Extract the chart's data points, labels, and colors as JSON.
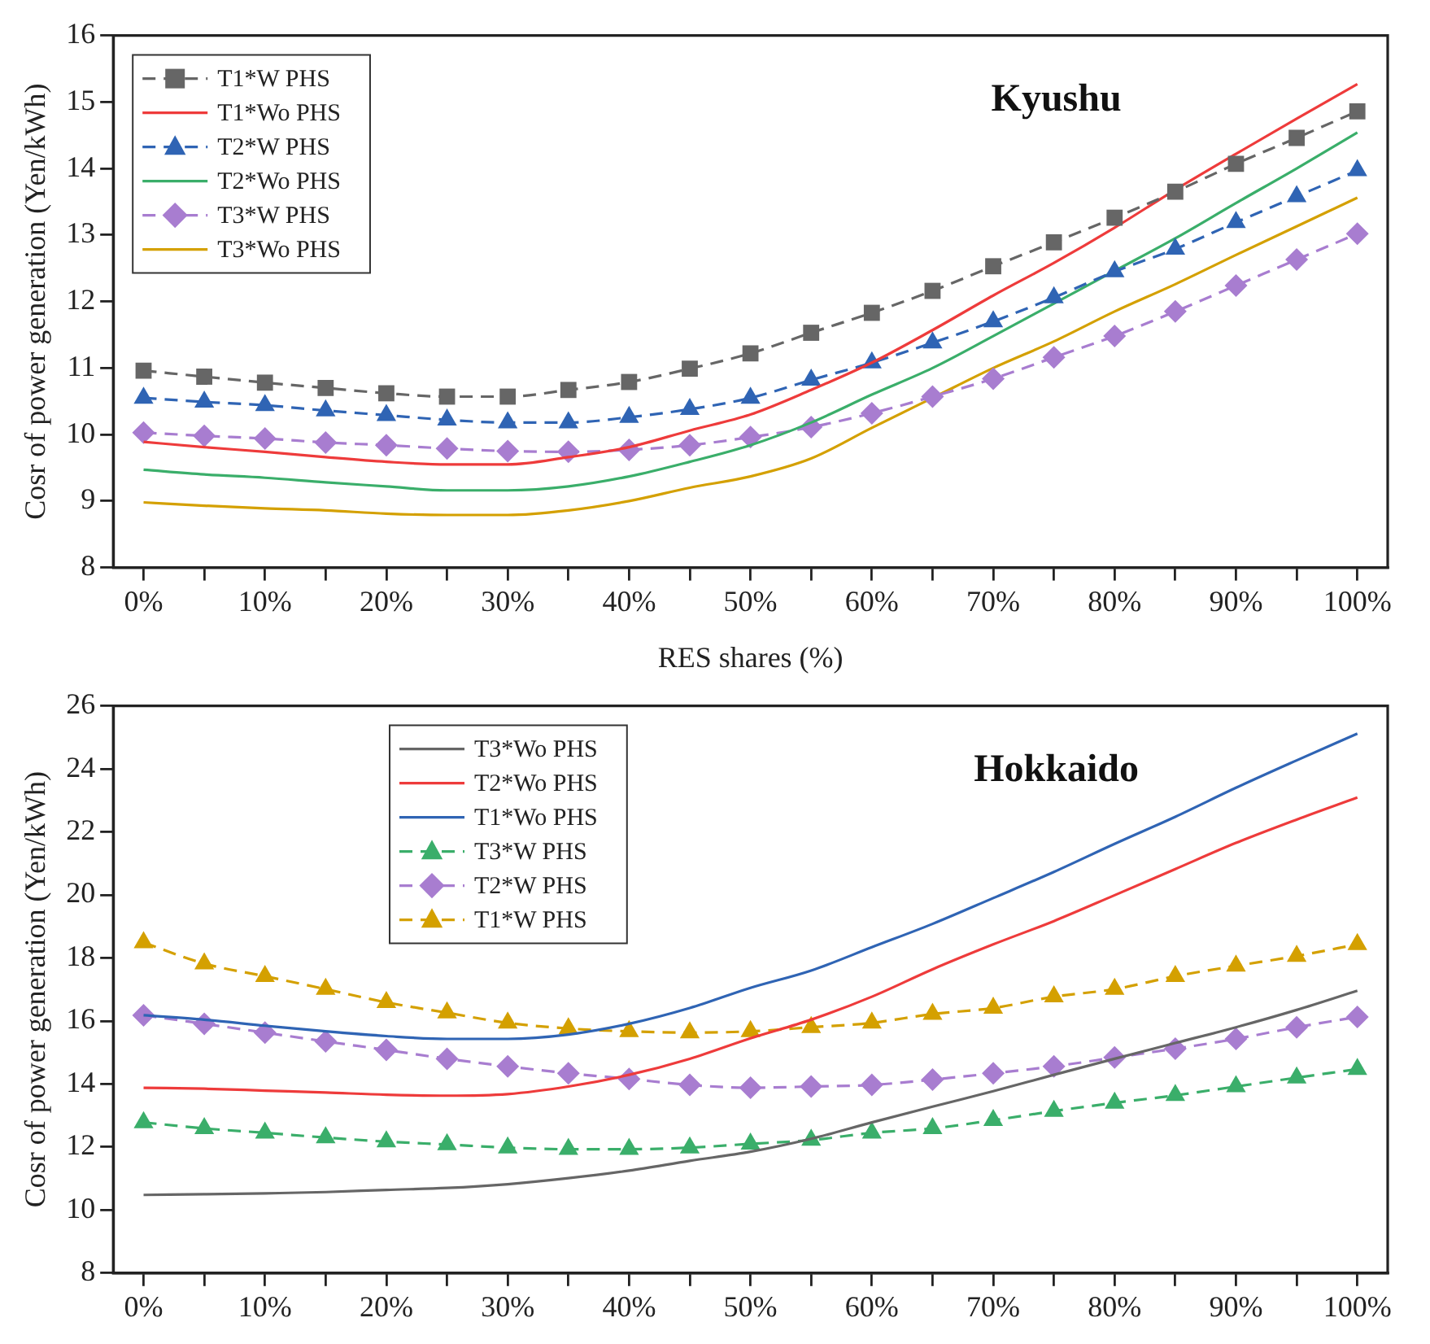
{
  "chart_data": [
    {
      "type": "line",
      "title": "Kyushu",
      "xlabel": "RES shares (%)",
      "ylabel": "Cosr of power generation (Yen/kWh)",
      "categories": [
        "0%",
        null,
        "10%",
        null,
        "20%",
        null,
        "30%",
        null,
        "40%",
        null,
        "50%",
        null,
        "60%",
        null,
        "70%",
        null,
        "80%",
        null,
        "90%",
        null,
        "100%"
      ],
      "ylim": [
        8,
        16
      ],
      "yticks": [
        8,
        9,
        10,
        11,
        12,
        13,
        14,
        15,
        16
      ],
      "grid": false,
      "legend": "top left",
      "series": [
        {
          "name": "T1*W PHS",
          "color": "#666666",
          "marker": "square",
          "line_style": "dashed",
          "values": [
            10.96,
            10.87,
            10.78,
            10.7,
            10.62,
            10.57,
            10.57,
            10.67,
            10.79,
            10.99,
            11.22,
            11.53,
            11.83,
            12.16,
            12.53,
            12.89,
            13.26,
            13.65,
            14.07,
            14.46,
            14.86
          ]
        },
        {
          "name": "T1*Wo PHS",
          "color": "#ee3b3b",
          "marker": "none",
          "line_style": "solid",
          "values": [
            9.89,
            9.81,
            9.74,
            9.66,
            9.59,
            9.55,
            9.55,
            9.66,
            9.81,
            10.06,
            10.3,
            10.67,
            11.08,
            11.57,
            12.09,
            12.58,
            13.11,
            13.68,
            14.22,
            14.75,
            15.27
          ]
        },
        {
          "name": "T2*W PHS",
          "color": "#2f64b4",
          "marker": "triangle",
          "line_style": "dashed",
          "values": [
            10.55,
            10.49,
            10.44,
            10.36,
            10.29,
            10.22,
            10.18,
            10.18,
            10.26,
            10.38,
            10.55,
            10.82,
            11.08,
            11.38,
            11.7,
            12.06,
            12.45,
            12.79,
            13.19,
            13.58,
            13.97
          ]
        },
        {
          "name": "T2*Wo PHS",
          "color": "#3aae6a",
          "marker": "none",
          "line_style": "solid",
          "values": [
            9.47,
            9.4,
            9.35,
            9.28,
            9.22,
            9.16,
            9.16,
            9.22,
            9.37,
            9.59,
            9.84,
            10.18,
            10.6,
            11.0,
            11.48,
            11.97,
            12.46,
            12.95,
            13.48,
            14.0,
            14.54
          ]
        },
        {
          "name": "T3*W PHS",
          "color": "#a87dd0",
          "marker": "diamond",
          "line_style": "dashed",
          "values": [
            10.03,
            9.98,
            9.94,
            9.88,
            9.84,
            9.79,
            9.75,
            9.74,
            9.77,
            9.84,
            9.96,
            10.11,
            10.32,
            10.57,
            10.84,
            11.16,
            11.48,
            11.85,
            12.24,
            12.63,
            13.02
          ]
        },
        {
          "name": "T3*Wo PHS",
          "color": "#d4a000",
          "marker": "none",
          "line_style": "solid",
          "values": [
            8.98,
            8.93,
            8.89,
            8.86,
            8.81,
            8.79,
            8.79,
            8.86,
            9.0,
            9.2,
            9.37,
            9.64,
            10.1,
            10.55,
            11.0,
            11.4,
            11.85,
            12.26,
            12.7,
            13.13,
            13.56
          ]
        }
      ]
    },
    {
      "type": "line",
      "title": "Hokkaido",
      "ylabel": "Cosr of power generation (Yen/kWh)",
      "categories": [
        "0%",
        null,
        "10%",
        null,
        "20%",
        null,
        "30%",
        null,
        "40%",
        null,
        "50%",
        null,
        "60%",
        null,
        "70%",
        null,
        "80%",
        null,
        "90%",
        null,
        "100%"
      ],
      "ylim": [
        8,
        26
      ],
      "yticks": [
        8,
        10,
        12,
        14,
        16,
        18,
        20,
        22,
        24,
        26
      ],
      "grid": false,
      "legend": "top",
      "series": [
        {
          "name": "T3*Wo PHS",
          "color": "#666666",
          "marker": "none",
          "line_style": "solid",
          "values": [
            10.48,
            10.5,
            10.53,
            10.57,
            10.64,
            10.7,
            10.82,
            11.01,
            11.25,
            11.56,
            11.85,
            12.26,
            12.78,
            13.28,
            13.77,
            14.29,
            14.8,
            15.3,
            15.8,
            16.35,
            16.96
          ]
        },
        {
          "name": "T2*Wo PHS",
          "color": "#ee3b3b",
          "marker": "none",
          "line_style": "solid",
          "values": [
            13.88,
            13.85,
            13.79,
            13.73,
            13.66,
            13.63,
            13.68,
            13.92,
            14.29,
            14.8,
            15.45,
            16.04,
            16.77,
            17.64,
            18.43,
            19.17,
            19.99,
            20.82,
            21.65,
            22.39,
            23.09
          ]
        },
        {
          "name": "T1*Wo PHS",
          "color": "#2f64b4",
          "marker": "none",
          "line_style": "solid",
          "values": [
            16.18,
            16.04,
            15.85,
            15.67,
            15.52,
            15.43,
            15.43,
            15.57,
            15.91,
            16.41,
            17.05,
            17.6,
            18.34,
            19.08,
            19.9,
            20.73,
            21.62,
            22.48,
            23.4,
            24.27,
            25.12
          ]
        },
        {
          "name": "T3*W PHS",
          "color": "#3aae6a",
          "marker": "triangle",
          "line_style": "dashed",
          "values": [
            12.78,
            12.59,
            12.45,
            12.3,
            12.17,
            12.08,
            11.98,
            11.93,
            11.93,
            11.98,
            12.1,
            12.22,
            12.45,
            12.59,
            12.85,
            13.14,
            13.4,
            13.64,
            13.92,
            14.2,
            14.47
          ]
        },
        {
          "name": "T2*W PHS",
          "color": "#a87dd0",
          "marker": "diamond",
          "line_style": "dashed",
          "values": [
            16.18,
            15.91,
            15.63,
            15.35,
            15.08,
            14.8,
            14.56,
            14.34,
            14.16,
            13.97,
            13.88,
            13.92,
            13.97,
            14.14,
            14.34,
            14.56,
            14.84,
            15.12,
            15.43,
            15.8,
            16.13
          ]
        },
        {
          "name": "T1*W PHS",
          "color": "#d4a000",
          "marker": "triangle",
          "line_style": "dashed",
          "values": [
            18.49,
            17.82,
            17.42,
            17.01,
            16.59,
            16.26,
            15.94,
            15.76,
            15.67,
            15.63,
            15.67,
            15.8,
            15.94,
            16.22,
            16.41,
            16.77,
            17.01,
            17.42,
            17.75,
            18.06,
            18.43
          ]
        }
      ]
    }
  ]
}
